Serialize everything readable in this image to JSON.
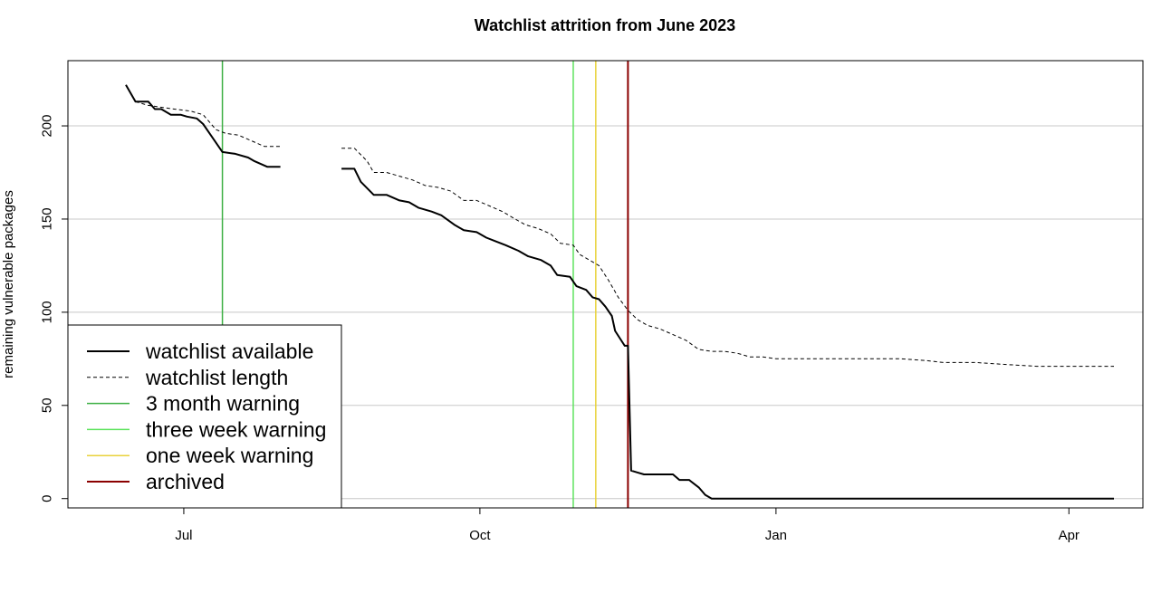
{
  "chart_data": {
    "type": "line",
    "title": "Watchlist attrition from June 2023",
    "xlabel": "",
    "ylabel": "remaining vulnerable packages",
    "ylim": [
      -5,
      235
    ],
    "xlim": [
      "2023-05-26",
      "2024-04-24"
    ],
    "x_ticks": [
      {
        "label": "Jul",
        "date": "2023-07-01"
      },
      {
        "label": "Oct",
        "date": "2023-10-01"
      },
      {
        "label": "Jan",
        "date": "2024-01-01"
      },
      {
        "label": "Apr",
        "date": "2024-04-01"
      }
    ],
    "y_ticks": [
      0,
      50,
      100,
      150,
      200
    ],
    "grid": "horizontal",
    "legend_position": "bottom-left",
    "series": [
      {
        "name": "watchlist available",
        "style": "solid",
        "color": "#000000",
        "segments": [
          [
            [
              "2023-06-13",
              222
            ],
            [
              "2023-06-16",
              213
            ],
            [
              "2023-06-20",
              213
            ],
            [
              "2023-06-22",
              209
            ],
            [
              "2023-06-24",
              209
            ],
            [
              "2023-06-27",
              206
            ],
            [
              "2023-06-30",
              206
            ],
            [
              "2023-07-02",
              205
            ],
            [
              "2023-07-05",
              204
            ],
            [
              "2023-07-07",
              201
            ],
            [
              "2023-07-09",
              196
            ],
            [
              "2023-07-13",
              186
            ],
            [
              "2023-07-17",
              185
            ],
            [
              "2023-07-21",
              183
            ],
            [
              "2023-07-23",
              181
            ],
            [
              "2023-07-27",
              178
            ],
            [
              "2023-07-31",
              178
            ]
          ],
          [
            [
              "2023-08-19",
              177
            ],
            [
              "2023-08-23",
              177
            ],
            [
              "2023-08-25",
              170
            ],
            [
              "2023-08-29",
              163
            ],
            [
              "2023-09-02",
              163
            ],
            [
              "2023-09-06",
              160
            ],
            [
              "2023-09-09",
              159
            ],
            [
              "2023-09-12",
              156
            ],
            [
              "2023-09-16",
              154
            ],
            [
              "2023-09-19",
              152
            ],
            [
              "2023-09-23",
              147
            ],
            [
              "2023-09-26",
              144
            ],
            [
              "2023-09-30",
              143
            ],
            [
              "2023-10-03",
              140
            ],
            [
              "2023-10-06",
              138
            ],
            [
              "2023-10-09",
              136
            ],
            [
              "2023-10-13",
              133
            ],
            [
              "2023-10-16",
              130
            ],
            [
              "2023-10-20",
              128
            ],
            [
              "2023-10-23",
              125
            ],
            [
              "2023-10-25",
              120
            ],
            [
              "2023-10-29",
              119
            ],
            [
              "2023-10-31",
              114
            ],
            [
              "2023-11-03",
              112
            ],
            [
              "2023-11-05",
              108
            ],
            [
              "2023-11-07",
              107
            ],
            [
              "2023-11-09",
              103
            ],
            [
              "2023-11-11",
              98
            ],
            [
              "2023-11-12",
              90
            ],
            [
              "2023-11-15",
              82
            ],
            [
              "2023-11-16",
              82
            ],
            [
              "2023-11-17",
              15
            ],
            [
              "2023-11-19",
              14
            ],
            [
              "2023-11-21",
              13
            ],
            [
              "2023-11-25",
              13
            ],
            [
              "2023-11-30",
              13
            ],
            [
              "2023-12-02",
              10
            ],
            [
              "2023-12-05",
              10
            ],
            [
              "2023-12-08",
              6
            ],
            [
              "2023-12-10",
              2
            ],
            [
              "2023-12-12",
              0
            ],
            [
              "2024-04-15",
              0
            ]
          ]
        ]
      },
      {
        "name": "watchlist length",
        "style": "dashed",
        "color": "#000000",
        "segments": [
          [
            [
              "2023-06-16",
              213
            ],
            [
              "2023-06-20",
              211
            ],
            [
              "2023-06-24",
              210
            ],
            [
              "2023-06-28",
              209
            ],
            [
              "2023-07-03",
              208
            ],
            [
              "2023-07-07",
              206
            ],
            [
              "2023-07-11",
              198
            ],
            [
              "2023-07-14",
              196
            ],
            [
              "2023-07-18",
              195
            ],
            [
              "2023-07-22",
              192
            ],
            [
              "2023-07-26",
              189
            ],
            [
              "2023-07-31",
              189
            ]
          ],
          [
            [
              "2023-08-19",
              188
            ],
            [
              "2023-08-23",
              188
            ],
            [
              "2023-08-27",
              181
            ],
            [
              "2023-08-29",
              175
            ],
            [
              "2023-09-02",
              175
            ],
            [
              "2023-09-06",
              173
            ],
            [
              "2023-09-10",
              171
            ],
            [
              "2023-09-14",
              168
            ],
            [
              "2023-09-18",
              167
            ],
            [
              "2023-09-22",
              165
            ],
            [
              "2023-09-26",
              160
            ],
            [
              "2023-09-30",
              160
            ],
            [
              "2023-10-04",
              157
            ],
            [
              "2023-10-08",
              154
            ],
            [
              "2023-10-11",
              151
            ],
            [
              "2023-10-15",
              147
            ],
            [
              "2023-10-19",
              145
            ],
            [
              "2023-10-23",
              142
            ],
            [
              "2023-10-26",
              137
            ],
            [
              "2023-10-30",
              136
            ],
            [
              "2023-11-01",
              131
            ],
            [
              "2023-11-04",
              128
            ],
            [
              "2023-11-07",
              125
            ],
            [
              "2023-11-10",
              117
            ],
            [
              "2023-11-13",
              108
            ],
            [
              "2023-11-16",
              101
            ],
            [
              "2023-11-19",
              96
            ],
            [
              "2023-11-22",
              93
            ],
            [
              "2023-11-26",
              91
            ],
            [
              "2023-11-30",
              88
            ],
            [
              "2023-12-04",
              85
            ],
            [
              "2023-12-08",
              80
            ],
            [
              "2023-12-12",
              79
            ],
            [
              "2023-12-16",
              79
            ],
            [
              "2023-12-20",
              78
            ],
            [
              "2023-12-24",
              76
            ],
            [
              "2023-12-28",
              76
            ],
            [
              "2024-01-01",
              75
            ],
            [
              "2024-01-10",
              75
            ],
            [
              "2024-01-20",
              75
            ],
            [
              "2024-01-30",
              75
            ],
            [
              "2024-02-09",
              75
            ],
            [
              "2024-02-17",
              74
            ],
            [
              "2024-02-22",
              73
            ],
            [
              "2024-03-03",
              73
            ],
            [
              "2024-03-12",
              72
            ],
            [
              "2024-03-22",
              71
            ],
            [
              "2024-04-02",
              71
            ],
            [
              "2024-04-15",
              71
            ]
          ]
        ]
      }
    ],
    "vertical_lines": [
      {
        "name": "3 month warning",
        "date": "2023-07-13",
        "color": "#3cb043"
      },
      {
        "name": "three week warning",
        "date": "2023-10-30",
        "color": "#5ee35e"
      },
      {
        "name": "one week warning",
        "date": "2023-11-06",
        "color": "#e8d23a"
      },
      {
        "name": "archived",
        "date": "2023-11-16",
        "color": "#8b0000"
      }
    ]
  }
}
